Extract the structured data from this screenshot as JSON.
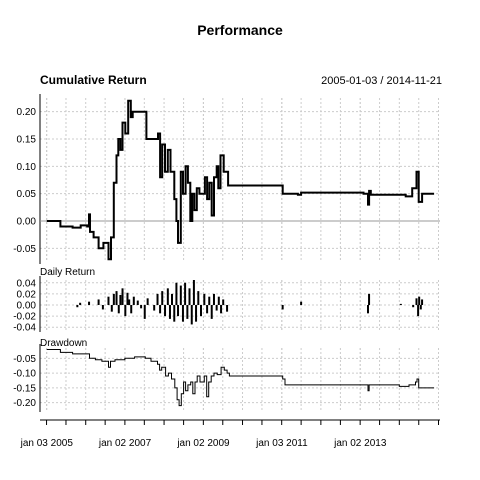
{
  "title": "Performance",
  "chart_data": [
    {
      "type": "line",
      "title": "Cumulative Return",
      "date_range_label": "2005-01-03 / 2014-11-21",
      "ylim": [
        -0.075,
        0.225
      ],
      "yticks": [
        0.2,
        0.15,
        0.1,
        0.05,
        0.0,
        -0.05
      ],
      "ytick_labels": [
        "0.20",
        "0.15",
        "0.10",
        "0.05",
        "0.00",
        "-0.05"
      ],
      "grid": true,
      "baseline": 0.0,
      "series": [
        {
          "points": [
            [
              "2005-01-03",
              0.0
            ],
            [
              "2005-04-15",
              0.0
            ],
            [
              "2005-05-10",
              -0.01
            ],
            [
              "2005-09-01",
              -0.012
            ],
            [
              "2005-11-15",
              -0.008
            ],
            [
              "2006-01-15",
              -0.01
            ],
            [
              "2006-02-01",
              0.012
            ],
            [
              "2006-02-10",
              -0.02
            ],
            [
              "2006-03-15",
              -0.03
            ],
            [
              "2006-05-01",
              -0.05
            ],
            [
              "2006-06-15",
              -0.04
            ],
            [
              "2006-08-01",
              -0.07
            ],
            [
              "2006-08-25",
              -0.03
            ],
            [
              "2006-09-20",
              0.07
            ],
            [
              "2006-10-15",
              0.12
            ],
            [
              "2006-11-01",
              0.15
            ],
            [
              "2006-11-20",
              0.13
            ],
            [
              "2006-12-10",
              0.18
            ],
            [
              "2007-01-05",
              0.16
            ],
            [
              "2007-02-01",
              0.22
            ],
            [
              "2007-02-25",
              0.19
            ],
            [
              "2007-03-15",
              0.2
            ],
            [
              "2007-07-01",
              0.2
            ],
            [
              "2007-07-20",
              0.15
            ],
            [
              "2007-10-15",
              0.15
            ],
            [
              "2007-11-05",
              0.16
            ],
            [
              "2007-11-25",
              0.08
            ],
            [
              "2007-12-15",
              0.14
            ],
            [
              "2008-01-10",
              0.09
            ],
            [
              "2008-02-05",
              0.13
            ],
            [
              "2008-03-01",
              0.09
            ],
            [
              "2008-04-05",
              0.04
            ],
            [
              "2008-04-25",
              0.0
            ],
            [
              "2008-05-10",
              -0.04
            ],
            [
              "2008-06-05",
              0.09
            ],
            [
              "2008-06-25",
              0.05
            ],
            [
              "2008-07-20",
              0.1
            ],
            [
              "2008-08-10",
              0.07
            ],
            [
              "2008-09-01",
              0.0
            ],
            [
              "2008-09-20",
              0.05
            ],
            [
              "2008-10-10",
              0.02
            ],
            [
              "2008-11-01",
              0.06
            ],
            [
              "2008-11-25",
              0.05
            ],
            [
              "2009-01-15",
              0.08
            ],
            [
              "2009-02-05",
              0.04
            ],
            [
              "2009-02-25",
              0.07
            ],
            [
              "2009-03-20",
              0.01
            ],
            [
              "2009-04-10",
              0.08
            ],
            [
              "2009-05-05",
              0.1
            ],
            [
              "2009-05-20",
              0.06
            ],
            [
              "2009-06-10",
              0.12
            ],
            [
              "2009-07-10",
              0.09
            ],
            [
              "2009-08-05",
              0.09
            ],
            [
              "2009-08-20",
              0.065
            ],
            [
              "2010-12-01",
              0.065
            ],
            [
              "2011-01-10",
              0.05
            ],
            [
              "2011-06-01",
              0.048
            ],
            [
              "2011-07-01",
              0.052
            ],
            [
              "2013-02-01",
              0.05
            ],
            [
              "2013-03-01",
              0.05
            ],
            [
              "2013-03-15",
              0.03
            ],
            [
              "2013-03-25",
              0.055
            ],
            [
              "2013-04-10",
              0.048
            ],
            [
              "2014-03-01",
              0.045
            ],
            [
              "2014-05-01",
              0.06
            ],
            [
              "2014-06-10",
              0.09
            ],
            [
              "2014-07-01",
              0.035
            ],
            [
              "2014-08-01",
              0.05
            ],
            [
              "2014-11-21",
              0.05
            ]
          ]
        }
      ]
    },
    {
      "type": "bar",
      "title": "Daily Return",
      "ylim": [
        -0.045,
        0.045
      ],
      "yticks": [
        0.04,
        0.02,
        0.0,
        -0.02,
        -0.04
      ],
      "ytick_labels": [
        "0.04",
        "0.02",
        "0.00",
        "-0.02",
        "-0.04"
      ],
      "grid": true,
      "points": [
        [
          "2005-10-15",
          -0.004
        ],
        [
          "2005-11-10",
          0.004
        ],
        [
          "2006-02-01",
          0.006
        ],
        [
          "2006-05-01",
          0.01
        ],
        [
          "2006-06-10",
          -0.008
        ],
        [
          "2006-08-01",
          0.015
        ],
        [
          "2006-09-01",
          -0.012
        ],
        [
          "2006-09-20",
          0.02
        ],
        [
          "2006-10-15",
          0.025
        ],
        [
          "2006-11-05",
          -0.015
        ],
        [
          "2006-11-20",
          0.018
        ],
        [
          "2006-12-10",
          0.03
        ],
        [
          "2007-01-05",
          -0.02
        ],
        [
          "2007-01-25",
          0.022
        ],
        [
          "2007-02-10",
          0.01
        ],
        [
          "2007-03-01",
          -0.015
        ],
        [
          "2007-03-25",
          0.015
        ],
        [
          "2007-05-01",
          0.008
        ],
        [
          "2007-06-01",
          -0.006
        ],
        [
          "2007-07-05",
          -0.025
        ],
        [
          "2007-08-01",
          0.012
        ],
        [
          "2007-10-01",
          -0.01
        ],
        [
          "2007-11-01",
          0.02
        ],
        [
          "2007-11-25",
          -0.015
        ],
        [
          "2007-12-15",
          0.025
        ],
        [
          "2008-01-10",
          -0.02
        ],
        [
          "2008-02-05",
          0.03
        ],
        [
          "2008-02-25",
          -0.025
        ],
        [
          "2008-03-15",
          0.02
        ],
        [
          "2008-04-05",
          -0.03
        ],
        [
          "2008-04-25",
          0.04
        ],
        [
          "2008-05-10",
          -0.02
        ],
        [
          "2008-06-05",
          0.035
        ],
        [
          "2008-06-25",
          -0.03
        ],
        [
          "2008-07-15",
          0.04
        ],
        [
          "2008-08-05",
          -0.025
        ],
        [
          "2008-08-25",
          0.03
        ],
        [
          "2008-09-15",
          -0.035
        ],
        [
          "2008-10-05",
          0.045
        ],
        [
          "2008-10-25",
          -0.03
        ],
        [
          "2008-11-15",
          0.025
        ],
        [
          "2008-12-10",
          -0.02
        ],
        [
          "2009-01-10",
          0.02
        ],
        [
          "2009-02-05",
          -0.015
        ],
        [
          "2009-02-25",
          0.015
        ],
        [
          "2009-03-20",
          -0.025
        ],
        [
          "2009-04-10",
          0.02
        ],
        [
          "2009-05-05",
          -0.01
        ],
        [
          "2009-05-25",
          0.015
        ],
        [
          "2009-06-15",
          -0.015
        ],
        [
          "2009-07-05",
          0.01
        ],
        [
          "2009-08-10",
          -0.012
        ],
        [
          "2011-01-10",
          -0.008
        ],
        [
          "2011-07-01",
          0.006
        ],
        [
          "2013-03-15",
          -0.015
        ],
        [
          "2013-03-25",
          0.02
        ],
        [
          "2014-01-15",
          0.002
        ],
        [
          "2014-05-10",
          -0.004
        ],
        [
          "2014-06-10",
          0.012
        ],
        [
          "2014-06-25",
          -0.02
        ],
        [
          "2014-07-05",
          0.015
        ],
        [
          "2014-07-20",
          -0.008
        ],
        [
          "2014-08-01",
          0.01
        ]
      ]
    },
    {
      "type": "line",
      "title": "Drawdown",
      "ylim": [
        -0.225,
        -0.015
      ],
      "yticks": [
        -0.05,
        -0.1,
        -0.15,
        -0.2
      ],
      "ytick_labels": [
        "-0.05",
        "-0.10",
        "-0.15",
        "-0.20"
      ],
      "grid": true,
      "series": [
        {
          "points": [
            [
              "2005-01-03",
              -0.02
            ],
            [
              "2005-05-01",
              -0.02
            ],
            [
              "2005-05-10",
              -0.03
            ],
            [
              "2005-09-01",
              -0.035
            ],
            [
              "2006-01-15",
              -0.035
            ],
            [
              "2006-02-05",
              -0.05
            ],
            [
              "2006-04-01",
              -0.055
            ],
            [
              "2006-06-01",
              -0.06
            ],
            [
              "2006-08-01",
              -0.08
            ],
            [
              "2006-08-20",
              -0.06
            ],
            [
              "2006-10-01",
              -0.055
            ],
            [
              "2007-01-01",
              -0.05
            ],
            [
              "2007-04-01",
              -0.045
            ],
            [
              "2007-07-10",
              -0.05
            ],
            [
              "2007-09-01",
              -0.06
            ],
            [
              "2007-11-01",
              -0.07
            ],
            [
              "2007-11-20",
              -0.09
            ],
            [
              "2007-12-10",
              -0.08
            ],
            [
              "2008-01-15",
              -0.11
            ],
            [
              "2008-02-10",
              -0.1
            ],
            [
              "2008-03-10",
              -0.12
            ],
            [
              "2008-04-10",
              -0.15
            ],
            [
              "2008-05-01",
              -0.19
            ],
            [
              "2008-05-20",
              -0.21
            ],
            [
              "2008-06-10",
              -0.17
            ],
            [
              "2008-07-01",
              -0.13
            ],
            [
              "2008-07-20",
              -0.16
            ],
            [
              "2008-08-10",
              -0.14
            ],
            [
              "2008-09-05",
              -0.13
            ],
            [
              "2008-09-25",
              -0.17
            ],
            [
              "2008-10-15",
              -0.13
            ],
            [
              "2008-11-05",
              -0.11
            ],
            [
              "2008-12-01",
              -0.13
            ],
            [
              "2009-01-10",
              -0.11
            ],
            [
              "2009-02-01",
              -0.18
            ],
            [
              "2009-02-20",
              -0.13
            ],
            [
              "2009-03-15",
              -0.11
            ],
            [
              "2009-04-10",
              -0.1
            ],
            [
              "2009-05-10",
              -0.105
            ],
            [
              "2009-06-15",
              -0.08
            ],
            [
              "2009-07-15",
              -0.09
            ],
            [
              "2009-08-10",
              -0.1
            ],
            [
              "2009-09-01",
              -0.11
            ],
            [
              "2011-01-10",
              -0.12
            ],
            [
              "2011-02-01",
              -0.14
            ],
            [
              "2013-03-01",
              -0.14
            ],
            [
              "2013-03-15",
              -0.16
            ],
            [
              "2013-03-25",
              -0.14
            ],
            [
              "2014-01-01",
              -0.145
            ],
            [
              "2014-04-01",
              -0.14
            ],
            [
              "2014-06-01",
              -0.13
            ],
            [
              "2014-06-15",
              -0.12
            ],
            [
              "2014-07-01",
              -0.15
            ],
            [
              "2014-08-01",
              -0.15
            ],
            [
              "2014-11-21",
              -0.15
            ]
          ]
        }
      ]
    }
  ],
  "x_axis": {
    "xlim": [
      "2004-11-01",
      "2015-01-15"
    ],
    "ticks": [
      "2005-01-03",
      "2007-01-02",
      "2009-01-02",
      "2011-01-03",
      "2013-01-02"
    ],
    "tick_labels": [
      "jan 03 2005",
      "jan 02 2007",
      "jan 02 2009",
      "jan 03 2011",
      "jan 02 2013"
    ]
  },
  "colors": {
    "series": "#000000",
    "grid": "#cccccc",
    "baseline": "#999999"
  }
}
